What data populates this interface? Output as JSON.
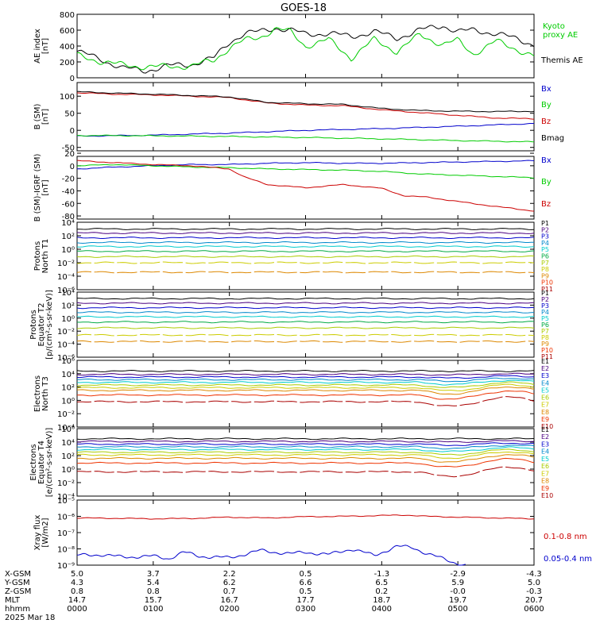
{
  "chart_data": {
    "type": "line",
    "title": "GOES-18",
    "date_label": "2025 Mar 18",
    "x_range_hours": [
      0,
      6
    ],
    "footer_rows": [
      {
        "label": "X-GSM",
        "values": [
          "5.0",
          "3.7",
          "2.2",
          "0.5",
          "-1.3",
          "-2.9",
          "-4.3"
        ]
      },
      {
        "label": "Y-GSM",
        "values": [
          "4.3",
          "5.4",
          "6.2",
          "6.6",
          "6.5",
          "5.9",
          "5.0"
        ]
      },
      {
        "label": "Z-GSM",
        "values": [
          "0.8",
          "0.8",
          "0.7",
          "0.5",
          "0.2",
          "-0.0",
          "-0.3"
        ]
      },
      {
        "label": "MLT",
        "values": [
          "14.7",
          "15.7",
          "16.7",
          "17.7",
          "18.7",
          "19.7",
          "20.7"
        ]
      },
      {
        "label": "hhmm",
        "values": [
          "0000",
          "0100",
          "0200",
          "0300",
          "0400",
          "0500",
          "0600"
        ]
      }
    ],
    "panels": [
      {
        "id": "ae",
        "ylabel": [
          "AE index",
          "[nT]"
        ],
        "scale": "linear",
        "ylim": [
          0,
          800
        ],
        "ticks": [
          "0",
          "200",
          "400",
          "600",
          "800"
        ],
        "tick_values": [
          0,
          200,
          400,
          600,
          800
        ],
        "series": [
          {
            "name": "Themis AE",
            "color": "#000000",
            "t": [
              0,
              0.3,
              0.6,
              0.9,
              1.2,
              1.5,
              1.8,
              2.0,
              2.2,
              2.4,
              2.6,
              2.8,
              3.0,
              3.3,
              3.6,
              3.9,
              4.2,
              4.5,
              4.8,
              5.0,
              5.2,
              5.5,
              5.8,
              6.0
            ],
            "y": [
              330,
              240,
              120,
              90,
              150,
              170,
              250,
              450,
              560,
              580,
              630,
              600,
              550,
              560,
              520,
              580,
              500,
              600,
              660,
              580,
              600,
              560,
              480,
              420
            ]
          },
          {
            "name": "Kyoto proxy AE",
            "color": "#00cc00",
            "t": [
              0,
              0.3,
              0.6,
              0.9,
              1.2,
              1.5,
              1.8,
              2.0,
              2.2,
              2.4,
              2.6,
              2.8,
              3.0,
              3.3,
              3.6,
              3.9,
              4.2,
              4.5,
              4.8,
              5.0,
              5.2,
              5.5,
              5.8,
              6.0
            ],
            "y": [
              280,
              210,
              160,
              140,
              140,
              150,
              220,
              380,
              470,
              510,
              620,
              580,
              400,
              480,
              250,
              480,
              330,
              540,
              420,
              470,
              300,
              460,
              350,
              270
            ]
          }
        ],
        "legend": [
          {
            "text": "Kyoto",
            "color": "#00cc00"
          },
          {
            "text": "proxy AE",
            "color": "#00cc00"
          },
          {
            "text": "Themis AE",
            "color": "#000000"
          }
        ]
      },
      {
        "id": "bsm",
        "ylabel": [
          "B (SM)",
          "[nT]"
        ],
        "scale": "linear",
        "ylim": [
          -60,
          140
        ],
        "ticks": [
          "-50",
          "0",
          "50",
          "100"
        ],
        "tick_values": [
          -50,
          0,
          50,
          100
        ],
        "series": [
          {
            "name": "Bx",
            "color": "#0000cc",
            "t": [
              0,
              1,
              2,
              3,
              4,
              5,
              6
            ],
            "y": [
              -17,
              -14,
              -8,
              0,
              5,
              12,
              20
            ]
          },
          {
            "name": "By",
            "color": "#00cc00",
            "t": [
              0,
              1,
              2,
              3,
              4,
              5,
              6
            ],
            "y": [
              -15,
              -16,
              -18,
              -21,
              -25,
              -30,
              -34
            ]
          },
          {
            "name": "Bz",
            "color": "#cc0000",
            "t": [
              0,
              0.5,
              1,
              1.5,
              2,
              2.5,
              3,
              3.5,
              4,
              4.5,
              5,
              5.5,
              6
            ],
            "y": [
              110,
              106,
              104,
              100,
              96,
              80,
              74,
              72,
              60,
              52,
              44,
              36,
              34
            ]
          },
          {
            "name": "Bmag",
            "color": "#000000",
            "t": [
              0,
              0.5,
              1,
              1.5,
              2,
              2.5,
              3,
              3.5,
              4,
              4.5,
              5,
              5.5,
              6
            ],
            "y": [
              113,
              109,
              106,
              102,
              98,
              82,
              78,
              76,
              64,
              58,
              56,
              55,
              56
            ]
          }
        ],
        "legend": [
          {
            "text": "Bx",
            "color": "#0000cc"
          },
          {
            "text": "By",
            "color": "#00cc00"
          },
          {
            "text": "Bz",
            "color": "#cc0000"
          },
          {
            "text": "Bmag",
            "color": "#000000"
          }
        ]
      },
      {
        "id": "bigrf",
        "ylabel": [
          "B (SM)-IGRF (SM)",
          "[nT]"
        ],
        "scale": "linear",
        "ylim": [
          -85,
          15
        ],
        "ticks": [
          "-80",
          "-60",
          "-40",
          "-20",
          "0",
          "20"
        ],
        "tick_values": [
          -80,
          -60,
          -40,
          -20,
          0,
          20
        ],
        "series": [
          {
            "name": "Bx",
            "color": "#0000cc",
            "t": [
              0,
              0.5,
              1,
              1.5,
              2,
              2.5,
              3,
              3.5,
              4,
              4.5,
              5,
              5.5,
              6
            ],
            "y": [
              -5,
              -2,
              0,
              2,
              2,
              4,
              5,
              4,
              4,
              5,
              6,
              7,
              8
            ]
          },
          {
            "name": "By",
            "color": "#00cc00",
            "t": [
              0,
              0.5,
              1,
              1.5,
              2,
              2.5,
              3,
              3.5,
              4,
              4.5,
              5,
              5.5,
              6
            ],
            "y": [
              0,
              2,
              0,
              -2,
              -3,
              -5,
              -6,
              -7,
              -9,
              -13,
              -15,
              -17,
              -19
            ]
          },
          {
            "name": "Bz",
            "color": "#cc0000",
            "t": [
              0,
              0.5,
              1,
              1.5,
              2,
              2.2,
              2.5,
              3,
              3.5,
              4,
              4.3,
              4.6,
              5,
              5.5,
              6
            ],
            "y": [
              8,
              5,
              2,
              0,
              -5,
              -18,
              -30,
              -35,
              -30,
              -36,
              -48,
              -50,
              -57,
              -65,
              -72
            ]
          }
        ],
        "legend": [
          {
            "text": "Bx",
            "color": "#0000cc"
          },
          {
            "text": "By",
            "color": "#00cc00"
          },
          {
            "text": "Bz",
            "color": "#cc0000"
          }
        ]
      },
      {
        "id": "protons_north",
        "ylabel": [
          "Protons",
          "North T1"
        ],
        "scale": "log",
        "ylim": [
          -6,
          4
        ],
        "ticks": [
          "10⁻⁶",
          "10⁻⁴",
          "10⁻²",
          "10⁰",
          "10²",
          "10⁴"
        ],
        "tick_values": [
          -6,
          -4,
          -2,
          0,
          2,
          4
        ],
        "channel_levels": [
          3.0,
          2.4,
          1.7,
          1.0,
          0.4,
          -0.3,
          -1.1,
          -2.0,
          -3.4
        ],
        "legend": [
          {
            "text": "P1",
            "color": "#000000"
          },
          {
            "text": "P2",
            "color": "#4a0080"
          },
          {
            "text": "P3",
            "color": "#0000cc"
          },
          {
            "text": "P4",
            "color": "#0088cc"
          },
          {
            "text": "P5",
            "color": "#00cccc"
          },
          {
            "text": "P6",
            "color": "#00aa44"
          },
          {
            "text": "P7",
            "color": "#aacc00"
          },
          {
            "text": "P8",
            "color": "#cccc00"
          },
          {
            "text": "P9",
            "color": "#dd8800"
          },
          {
            "text": "P10",
            "color": "#ee3300"
          },
          {
            "text": "P11",
            "color": "#aa0000"
          }
        ]
      },
      {
        "id": "protons_equator",
        "ylabel": [
          "Protons",
          "Equator T2",
          "[p/(cm²-s-sr-keV)]"
        ],
        "scale": "log",
        "ylim": [
          -6,
          4
        ],
        "ticks": [
          "10⁻⁶",
          "10⁻⁴",
          "10⁻²",
          "10⁰",
          "10²",
          "10⁴"
        ],
        "tick_values": [
          -6,
          -4,
          -2,
          0,
          2,
          4
        ],
        "channel_levels": [
          3.0,
          2.3,
          1.6,
          0.9,
          0.2,
          -0.6,
          -1.5,
          -2.6,
          -3.6
        ],
        "legend": [
          {
            "text": "P1",
            "color": "#000000"
          },
          {
            "text": "P2",
            "color": "#4a0080"
          },
          {
            "text": "P3",
            "color": "#0000cc"
          },
          {
            "text": "P4",
            "color": "#0088cc"
          },
          {
            "text": "P5",
            "color": "#00cccc"
          },
          {
            "text": "P6",
            "color": "#00aa44"
          },
          {
            "text": "P7",
            "color": "#aacc00"
          },
          {
            "text": "P8",
            "color": "#cccc00"
          },
          {
            "text": "P9",
            "color": "#dd8800"
          },
          {
            "text": "P10",
            "color": "#ee3300"
          },
          {
            "text": "P11",
            "color": "#aa0000"
          }
        ]
      },
      {
        "id": "electrons_north",
        "ylabel": [
          "Electrons",
          "North T3"
        ],
        "scale": "log",
        "ylim": [
          -4,
          6
        ],
        "ticks": [
          "10⁻⁴",
          "10⁻²",
          "10⁰",
          "10²",
          "10⁴",
          "10⁶"
        ],
        "tick_values": [
          -4,
          -2,
          0,
          2,
          4,
          6
        ],
        "channel_levels": [
          4.4,
          3.9,
          3.5,
          3.1,
          2.7,
          2.3,
          1.9,
          1.5,
          0.8,
          -0.2
        ],
        "legend": [
          {
            "text": "E1",
            "color": "#000000"
          },
          {
            "text": "E2",
            "color": "#4a0080"
          },
          {
            "text": "E3",
            "color": "#0000cc"
          },
          {
            "text": "E4",
            "color": "#0088cc"
          },
          {
            "text": "E5",
            "color": "#00cccc"
          },
          {
            "text": "E6",
            "color": "#aacc00"
          },
          {
            "text": "E7",
            "color": "#cccc00"
          },
          {
            "text": "E8",
            "color": "#dd8800"
          },
          {
            "text": "E9",
            "color": "#ee3300"
          },
          {
            "text": "E10",
            "color": "#aa0000"
          }
        ]
      },
      {
        "id": "electrons_equator",
        "ylabel": [
          "Electrons",
          "Equator T4",
          "[e/(cm²-s-sr-keV)]"
        ],
        "scale": "log",
        "ylim": [
          -4,
          6
        ],
        "ticks": [
          "10⁻⁴",
          "10⁻²",
          "10⁰",
          "10²",
          "10⁴",
          "10⁶"
        ],
        "tick_values": [
          -4,
          -2,
          0,
          2,
          4,
          6
        ],
        "channel_levels": [
          4.5,
          4.1,
          3.7,
          3.3,
          2.9,
          2.5,
          2.1,
          1.6,
          0.9,
          -0.4
        ],
        "legend": [
          {
            "text": "E1",
            "color": "#000000"
          },
          {
            "text": "E2",
            "color": "#4a0080"
          },
          {
            "text": "E3",
            "color": "#0000cc"
          },
          {
            "text": "E4",
            "color": "#0088cc"
          },
          {
            "text": "E5",
            "color": "#00cccc"
          },
          {
            "text": "E6",
            "color": "#aacc00"
          },
          {
            "text": "E7",
            "color": "#cccc00"
          },
          {
            "text": "E8",
            "color": "#dd8800"
          },
          {
            "text": "E9",
            "color": "#ee3300"
          },
          {
            "text": "E10",
            "color": "#aa0000"
          }
        ]
      },
      {
        "id": "xray",
        "ylabel": [
          "Xray flux",
          "[W/m2]"
        ],
        "scale": "log",
        "ylim": [
          -9,
          -5
        ],
        "ticks": [
          "10⁻⁹",
          "10⁻⁸",
          "10⁻⁷",
          "10⁻⁶",
          "10⁻⁵"
        ],
        "tick_values": [
          -9,
          -8,
          -7,
          -6,
          -5
        ],
        "series": [
          {
            "name": "0.1-0.8 nm",
            "color": "#cc0000",
            "t": [
              0,
              0.5,
              1,
              1.5,
              2,
              2.5,
              3,
              3.5,
              4,
              4.3,
              4.6,
              5,
              5.5,
              6
            ],
            "y": [
              -6.1,
              -6.12,
              -6.15,
              -6.13,
              -6.05,
              -6.1,
              -6.02,
              -6.0,
              -5.95,
              -5.92,
              -6.0,
              -6.05,
              -6.1,
              -6.15
            ]
          },
          {
            "name": "0.05-0.4 nm",
            "color": "#0000cc",
            "t": [
              0,
              0.3,
              0.6,
              1.0,
              1.2,
              1.4,
              1.6,
              2.0,
              2.4,
              2.8,
              3.0,
              3.3,
              3.6,
              3.9,
              4.2,
              4.4,
              4.6,
              4.8,
              5.0,
              5.1
            ],
            "y": [
              -8.4,
              -8.35,
              -8.5,
              -8.45,
              -8.6,
              -8.2,
              -8.45,
              -8.55,
              -8.1,
              -8.3,
              -8.2,
              -8.35,
              -8.0,
              -8.4,
              -7.85,
              -7.9,
              -8.3,
              -8.6,
              -8.9,
              -9.0
            ]
          }
        ],
        "legend": [
          {
            "text": "0.1-0.8 nm",
            "color": "#cc0000"
          },
          {
            "text": "0.05-0.4 nm",
            "color": "#0000cc"
          }
        ]
      }
    ]
  }
}
